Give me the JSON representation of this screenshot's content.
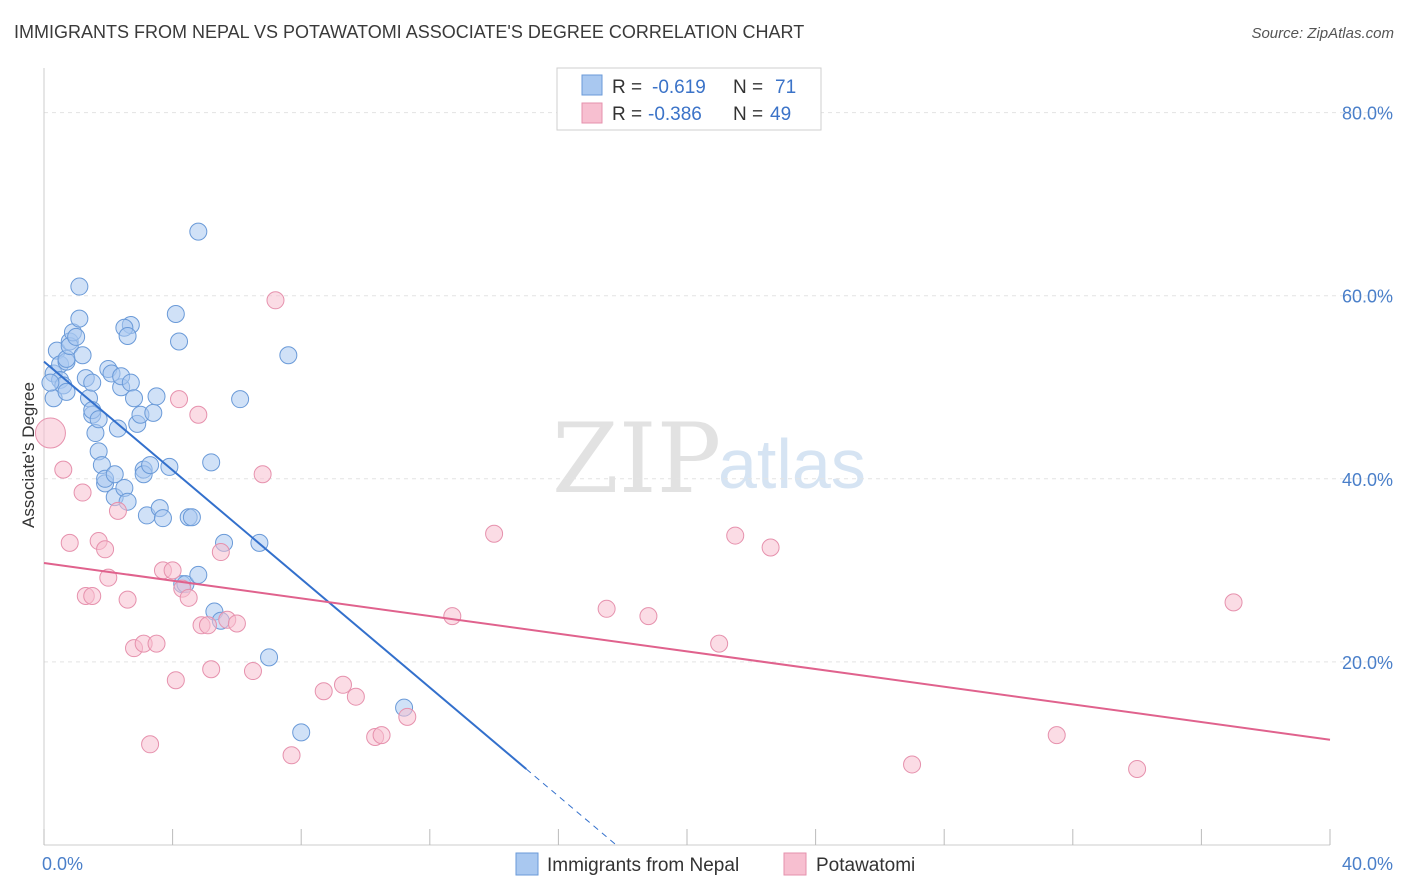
{
  "header": {
    "title": "IMMIGRANTS FROM NEPAL VS POTAWATOMI ASSOCIATE'S DEGREE CORRELATION CHART",
    "source": "Source: ZipAtlas.com"
  },
  "watermark": {
    "zip": "ZIP",
    "atlas": "atlas"
  },
  "legend": {
    "r_label": "R =",
    "n_label": "N =",
    "rows": [
      {
        "r": "-0.619",
        "n": "71"
      },
      {
        "r": "-0.386",
        "n": "49"
      }
    ]
  },
  "colors": {
    "nepal_fill": "#a9c8f0",
    "nepal_stroke": "#6a9ad8",
    "nepal_line": "#3370cc",
    "pot_fill": "#f7bfd0",
    "pot_stroke": "#e691ad",
    "pot_line": "#e0628d",
    "grid": "#e3e3e3",
    "axis_text": "#4a7fc9"
  },
  "chart_data": {
    "type": "scatter",
    "title": "IMMIGRANTS FROM NEPAL VS POTAWATOMI ASSOCIATE'S DEGREE CORRELATION CHART",
    "xlabel": "",
    "ylabel": "Associate's Degree",
    "xlim": [
      0,
      40
    ],
    "ylim": [
      0,
      84
    ],
    "x_tick_labels": [
      "0.0%",
      "40.0%"
    ],
    "y_ticks": [
      20,
      40,
      60,
      80
    ],
    "y_tick_labels": [
      "20.0%",
      "40.0%",
      "60.0%",
      "80.0%"
    ],
    "grid": true,
    "legend_position": "top-center",
    "series": [
      {
        "name": "Immigrants from Nepal",
        "r": -0.619,
        "n": 71,
        "trend": {
          "x": [
            0,
            15
          ],
          "y": [
            52.8,
            8.3
          ],
          "dashed_x": [
            15,
            17.8
          ],
          "dashed_y": [
            8.3,
            0
          ]
        },
        "points": [
          [
            0.3,
            51.5
          ],
          [
            0.3,
            48.8
          ],
          [
            0.4,
            54
          ],
          [
            0.5,
            52.5
          ],
          [
            0.5,
            50.8
          ],
          [
            0.6,
            50.2
          ],
          [
            0.7,
            52.8
          ],
          [
            0.7,
            53.1
          ],
          [
            0.8,
            55
          ],
          [
            0.8,
            54.5
          ],
          [
            0.9,
            56
          ],
          [
            0.7,
            49.5
          ],
          [
            1,
            55.5
          ],
          [
            1.1,
            57.5
          ],
          [
            1.2,
            53.5
          ],
          [
            1.3,
            51
          ],
          [
            1.4,
            48.8
          ],
          [
            1.5,
            50.5
          ],
          [
            1.5,
            47
          ],
          [
            1.5,
            47.5
          ],
          [
            1.6,
            45
          ],
          [
            1.7,
            46.5
          ],
          [
            1.7,
            43
          ],
          [
            1.8,
            41.5
          ],
          [
            1.9,
            39.5
          ],
          [
            1.9,
            40
          ],
          [
            2,
            52
          ],
          [
            2.1,
            51.5
          ],
          [
            2.2,
            40.5
          ],
          [
            2.2,
            38
          ],
          [
            2.3,
            45.5
          ],
          [
            2.4,
            50
          ],
          [
            2.4,
            51.2
          ],
          [
            2.5,
            39
          ],
          [
            2.6,
            37.5
          ],
          [
            2.7,
            56.8
          ],
          [
            2.5,
            56.5
          ],
          [
            2.6,
            55.6
          ],
          [
            2.7,
            50.5
          ],
          [
            2.8,
            48.8
          ],
          [
            2.9,
            46
          ],
          [
            3,
            47
          ],
          [
            3.1,
            41
          ],
          [
            3.1,
            40.5
          ],
          [
            3.2,
            36
          ],
          [
            3.3,
            41.5
          ],
          [
            3.4,
            47.2
          ],
          [
            3.5,
            49
          ],
          [
            3.6,
            36.8
          ],
          [
            3.7,
            35.7
          ],
          [
            3.9,
            41.3
          ],
          [
            4.1,
            58
          ],
          [
            4.2,
            55
          ],
          [
            4.3,
            28.5
          ],
          [
            4.4,
            28.5
          ],
          [
            4.5,
            35.8
          ],
          [
            4.6,
            35.8
          ],
          [
            4.8,
            29.5
          ],
          [
            5.2,
            41.8
          ],
          [
            5.3,
            25.5
          ],
          [
            5.5,
            24.5
          ],
          [
            5.6,
            33
          ],
          [
            6.1,
            48.7
          ],
          [
            6.7,
            33
          ],
          [
            7,
            20.5
          ],
          [
            7.6,
            53.5
          ],
          [
            1.1,
            61
          ],
          [
            4.8,
            67
          ],
          [
            8,
            12.3
          ],
          [
            11.2,
            15
          ],
          [
            0.2,
            50.5
          ]
        ]
      },
      {
        "name": "Potawatomi",
        "r": -0.386,
        "n": 49,
        "trend": {
          "x": [
            0,
            40
          ],
          "y": [
            30.8,
            11.5
          ]
        },
        "points": [
          [
            0.2,
            45
          ],
          [
            0.6,
            41
          ],
          [
            0.8,
            33
          ],
          [
            1.2,
            38.5
          ],
          [
            1.3,
            27.2
          ],
          [
            1.5,
            27.2
          ],
          [
            1.7,
            33.2
          ],
          [
            1.9,
            32.3
          ],
          [
            2,
            29.2
          ],
          [
            2.3,
            36.5
          ],
          [
            2.6,
            26.8
          ],
          [
            2.8,
            21.5
          ],
          [
            3.1,
            22
          ],
          [
            3.3,
            11
          ],
          [
            3.5,
            22
          ],
          [
            3.7,
            30
          ],
          [
            4,
            30
          ],
          [
            4.1,
            18
          ],
          [
            4.2,
            48.7
          ],
          [
            4.3,
            28
          ],
          [
            4.5,
            27
          ],
          [
            4.8,
            47
          ],
          [
            4.9,
            24
          ],
          [
            5.1,
            24
          ],
          [
            5.2,
            19.2
          ],
          [
            5.5,
            32
          ],
          [
            5.7,
            24.6
          ],
          [
            6,
            24.2
          ],
          [
            6.5,
            19
          ],
          [
            6.8,
            40.5
          ],
          [
            7.2,
            59.5
          ],
          [
            7.7,
            9.8
          ],
          [
            8.7,
            16.8
          ],
          [
            9.3,
            17.5
          ],
          [
            9.7,
            16.2
          ],
          [
            10.3,
            11.8
          ],
          [
            10.5,
            12
          ],
          [
            11.3,
            14
          ],
          [
            12.7,
            25
          ],
          [
            14,
            34
          ],
          [
            17.5,
            25.8
          ],
          [
            18.8,
            25
          ],
          [
            21,
            22
          ],
          [
            21.5,
            33.8
          ],
          [
            22.6,
            32.5
          ],
          [
            27,
            8.8
          ],
          [
            31.5,
            12
          ],
          [
            34,
            8.3
          ],
          [
            37,
            26.5
          ]
        ]
      }
    ]
  }
}
